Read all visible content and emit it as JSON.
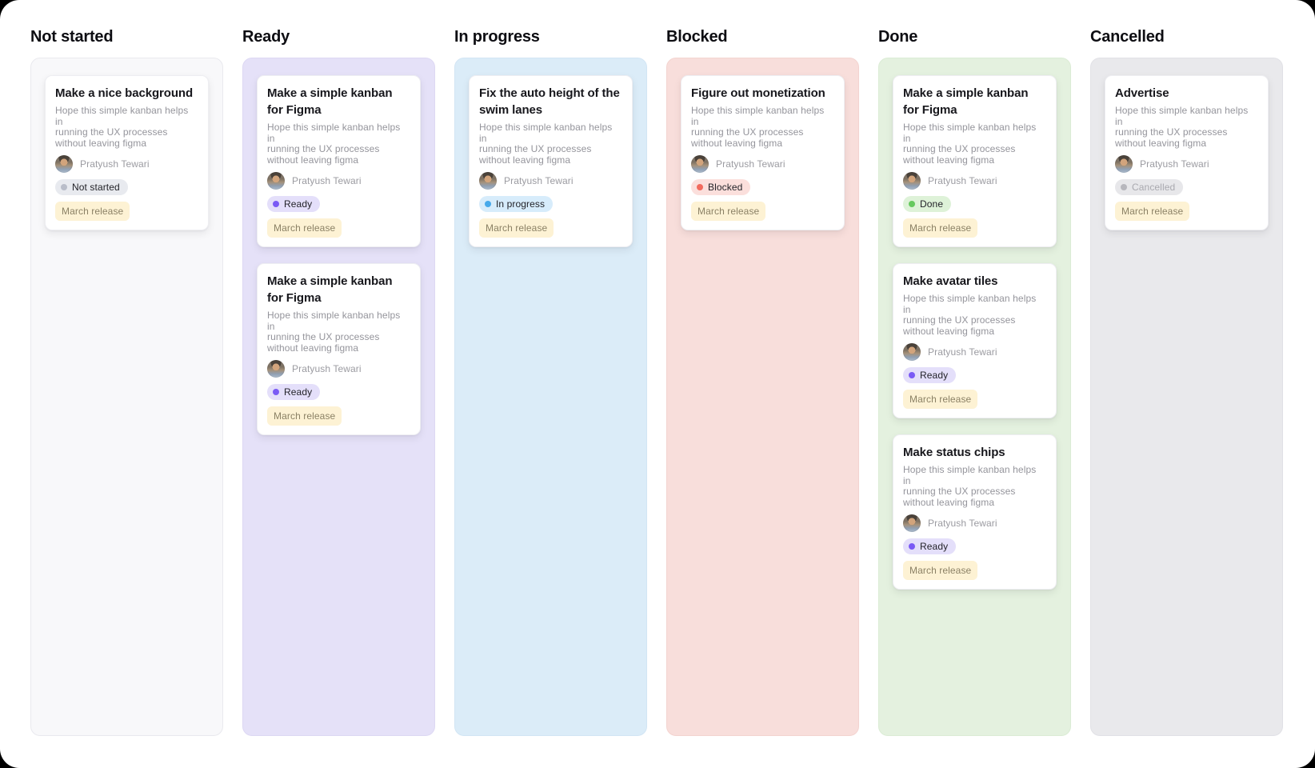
{
  "board": {
    "columns": [
      {
        "title": "Not started",
        "lane_bg": "#f8f8fa",
        "lane_border": "#e9e9ee",
        "cards": [
          {
            "title_lines": [
              "Make a nice background"
            ],
            "status": "not_started"
          }
        ]
      },
      {
        "title": "Ready",
        "lane_bg": "#e5e1f8",
        "lane_border": "#ddd8f3",
        "cards": [
          {
            "title_lines": [
              "Make a simple kanban",
              "for Figma"
            ],
            "status": "ready"
          },
          {
            "title_lines": [
              "Make a simple kanban",
              "for Figma"
            ],
            "status": "ready"
          }
        ]
      },
      {
        "title": "In progress",
        "lane_bg": "#dbecf8",
        "lane_border": "#d2e5f4",
        "cards": [
          {
            "title_lines": [
              "Fix the auto height of the",
              "swim lanes"
            ],
            "status": "in_progress"
          }
        ]
      },
      {
        "title": "Blocked",
        "lane_bg": "#f8dedb",
        "lane_border": "#f3d4d0",
        "cards": [
          {
            "title_lines": [
              "Figure out monetization"
            ],
            "status": "blocked"
          }
        ]
      },
      {
        "title": "Done",
        "lane_bg": "#e4f1df",
        "lane_border": "#dbecd5",
        "cards": [
          {
            "title_lines": [
              "Make a simple kanban",
              "for Figma"
            ],
            "status": "done"
          },
          {
            "title_lines": [
              "Make avatar tiles"
            ],
            "status": "ready"
          },
          {
            "title_lines": [
              "Make status chips"
            ],
            "status": "ready"
          }
        ]
      },
      {
        "title": "Cancelled",
        "lane_bg": "#e9e9ec",
        "lane_border": "#e1e1e6",
        "cards": [
          {
            "title_lines": [
              "Advertise"
            ],
            "status": "cancelled"
          }
        ]
      }
    ]
  },
  "statuses": {
    "not_started": {
      "label": "Not started",
      "bg": "#e8eaef",
      "dot": "#b9bdc9",
      "text": "#232329"
    },
    "ready": {
      "label": "Ready",
      "bg": "#e4dffa",
      "dot": "#7a5af5",
      "text": "#232329"
    },
    "in_progress": {
      "label": "In progress",
      "bg": "#d7ecfb",
      "dot": "#47a9ea",
      "text": "#232329"
    },
    "blocked": {
      "label": "Blocked",
      "bg": "#fbdfdc",
      "dot": "#f26b5e",
      "text": "#232329"
    },
    "done": {
      "label": "Done",
      "bg": "#def2d8",
      "dot": "#66c95e",
      "text": "#232329"
    },
    "cancelled": {
      "label": "Cancelled",
      "bg": "#e7e7ea",
      "dot": "#b7b7bd",
      "text": "#a9a9af"
    }
  },
  "shared": {
    "description_lines": [
      "Hope this simple kanban helps in",
      "running the UX processes",
      "without leaving figma"
    ],
    "assignee": "Pratyush Tewari",
    "tag": "March release",
    "tag_bg": "#fdf2d4",
    "tag_text": "#8b8165"
  }
}
